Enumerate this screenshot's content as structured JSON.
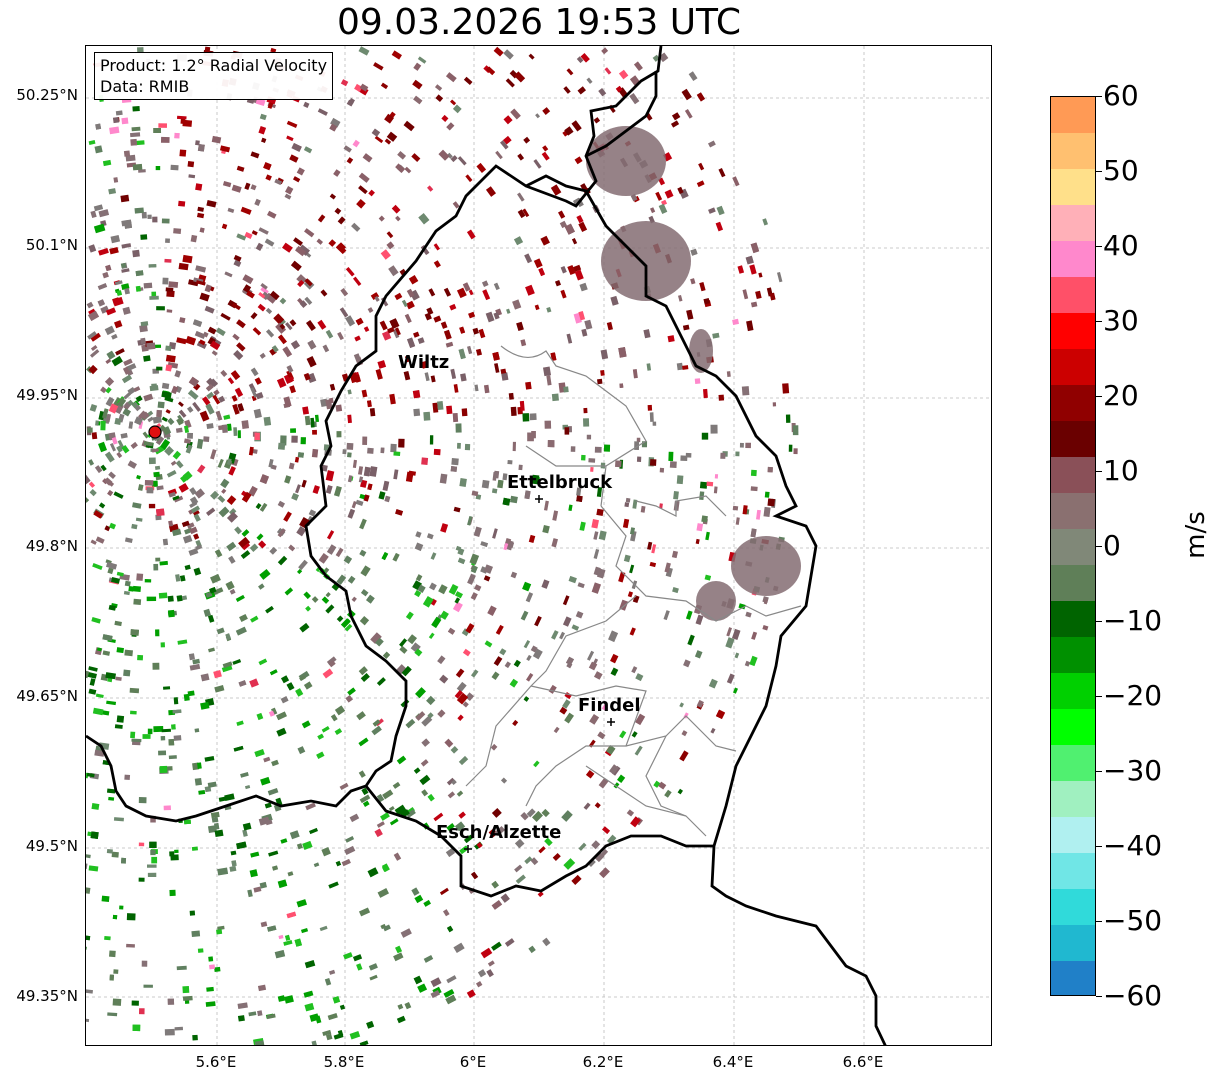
{
  "title": "09.03.2026 19:53 UTC",
  "info_box": {
    "product": "Product: 1.2° Radial Velocity",
    "data": "Data: RMIB"
  },
  "axes": {
    "lat_ticks": [
      "50.25°N",
      "50.1°N",
      "49.95°N",
      "49.8°N",
      "49.65°N",
      "49.5°N",
      "49.35°N"
    ],
    "lon_ticks": [
      "5.6°E",
      "5.8°E",
      "6°E",
      "6.2°E",
      "6.4°E",
      "6.6°E"
    ],
    "grid": true
  },
  "cities": [
    {
      "name": "Wiltz"
    },
    {
      "name": "Ettelbruck"
    },
    {
      "name": "Findel"
    },
    {
      "name": "Esch/Alzette"
    }
  ],
  "colorbar": {
    "label": "m/s",
    "ticks": [
      "60",
      "50",
      "40",
      "30",
      "20",
      "10",
      "0",
      "−10",
      "−20",
      "−30",
      "−40",
      "−50",
      "−60"
    ],
    "range": [
      -60,
      60
    ],
    "colors": [
      "#ff9a55",
      "#ffc070",
      "#ffe08a",
      "#ffb0b8",
      "#ff88cc",
      "#ff5068",
      "#ff0000",
      "#cc0000",
      "#900000",
      "#6a0000",
      "#8a5058",
      "#8a7070",
      "#808878",
      "#5f7f58",
      "#006400",
      "#009000",
      "#00d000",
      "#00ff00",
      "#50f070",
      "#a0f0c0",
      "#b0f0f0",
      "#70e6e6",
      "#30dada",
      "#20b8d0",
      "#2080c8"
    ]
  },
  "radar_site": {
    "color": "#e01010"
  }
}
